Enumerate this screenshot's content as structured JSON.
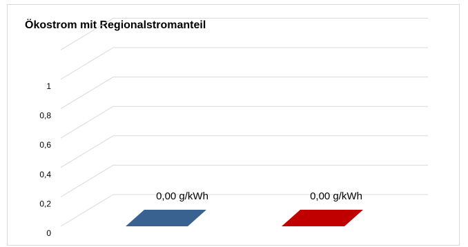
{
  "chart_data": {
    "type": "bar",
    "title": "Ökostrom mit Regionalstromanteil",
    "categories": [
      "",
      ""
    ],
    "values": [
      0,
      0
    ],
    "data_labels": [
      "0,00 g/kWh",
      "0,00 g/kWh"
    ],
    "colors": [
      "#3a6291",
      "#c00000"
    ],
    "yticks": [
      "0",
      "0,2",
      "0,4",
      "0,6",
      "0,8",
      "1"
    ],
    "ylim": [
      0,
      1.2
    ],
    "grid": true,
    "three_d": true
  }
}
